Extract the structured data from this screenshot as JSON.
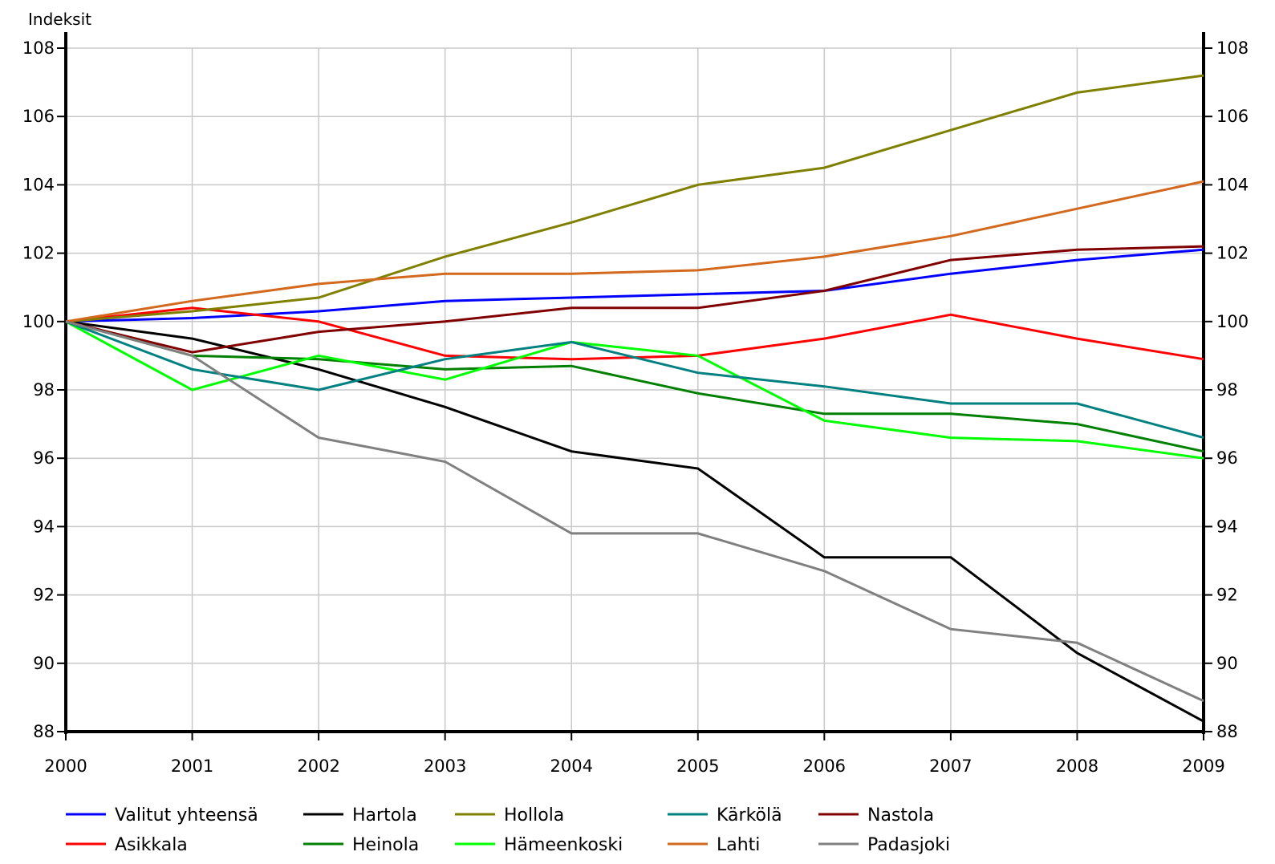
{
  "chart_data": {
    "type": "line",
    "ylabel": "Indeksit",
    "ylim": [
      88,
      108
    ],
    "yticks": [
      88,
      90,
      92,
      94,
      96,
      98,
      100,
      102,
      104,
      106,
      108
    ],
    "x": [
      "2000",
      "2001",
      "2002",
      "2003",
      "2004",
      "2005",
      "2006",
      "2007",
      "2008",
      "2009"
    ],
    "grid": true,
    "legend_position": "bottom",
    "series": [
      {
        "name": "Valitut yhteensä",
        "color": "#0000ff",
        "values": [
          100,
          100.1,
          100.3,
          100.6,
          100.7,
          100.8,
          100.9,
          101.4,
          101.8,
          102.1
        ]
      },
      {
        "name": "Asikkala",
        "color": "#ff0000",
        "values": [
          100,
          100.4,
          100.0,
          99.0,
          98.9,
          99.0,
          99.5,
          100.2,
          99.5,
          98.9
        ]
      },
      {
        "name": "Hartola",
        "color": "#000000",
        "values": [
          100,
          99.5,
          98.6,
          97.5,
          96.2,
          95.7,
          93.1,
          93.1,
          90.3,
          88.3
        ]
      },
      {
        "name": "Heinola",
        "color": "#008000",
        "values": [
          100,
          99.0,
          98.9,
          98.6,
          98.7,
          97.9,
          97.3,
          97.3,
          97.0,
          96.2
        ]
      },
      {
        "name": "Hollola",
        "color": "#808000",
        "values": [
          100,
          100.3,
          100.7,
          101.9,
          102.9,
          104.0,
          104.5,
          105.6,
          106.7,
          107.2
        ]
      },
      {
        "name": "Hämeenkoski",
        "color": "#00ff00",
        "values": [
          100,
          98.0,
          99.0,
          98.3,
          99.4,
          99.0,
          97.1,
          96.6,
          96.5,
          96.0
        ]
      },
      {
        "name": "Kärkölä",
        "color": "#008080",
        "values": [
          100,
          98.6,
          98.0,
          98.9,
          99.4,
          98.5,
          98.1,
          97.6,
          97.6,
          96.6
        ]
      },
      {
        "name": "Lahti",
        "color": "#d2691e",
        "values": [
          100,
          100.6,
          101.1,
          101.4,
          101.4,
          101.5,
          101.9,
          102.5,
          103.3,
          104.1
        ]
      },
      {
        "name": "Nastola",
        "color": "#800000",
        "values": [
          100,
          99.1,
          99.7,
          100.0,
          100.4,
          100.4,
          100.9,
          101.8,
          102.1,
          102.2
        ]
      },
      {
        "name": "Padasjoki",
        "color": "#808080",
        "values": [
          100,
          99.0,
          96.6,
          95.9,
          93.8,
          93.8,
          92.7,
          91.0,
          90.6,
          88.9
        ]
      }
    ]
  }
}
